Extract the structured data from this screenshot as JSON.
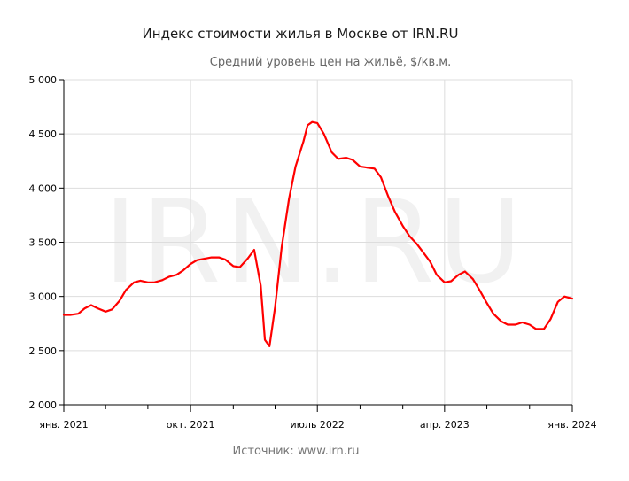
{
  "chart_data": {
    "type": "line",
    "title": "Индекс стоимости жилья в Москве от IRN.RU",
    "subtitle": "Средний уровень цен на жильё, $/кв.м.",
    "source": "Источник: www.irn.ru",
    "watermark": "IRN.RU",
    "ylim": [
      2000,
      5000
    ],
    "y_ticks": [
      {
        "value": 2000,
        "label": "2 000"
      },
      {
        "value": 2500,
        "label": "2 500"
      },
      {
        "value": 3000,
        "label": "3 000"
      },
      {
        "value": 3500,
        "label": "3 500"
      },
      {
        "value": 4000,
        "label": "4 000"
      },
      {
        "value": 4500,
        "label": "4 500"
      },
      {
        "value": 5000,
        "label": "5 000"
      }
    ],
    "xlim": [
      "2021-01",
      "2024-01"
    ],
    "x_ticks": [
      {
        "value": "2021-01",
        "label": "янв. 2021"
      },
      {
        "value": "2021-10",
        "label": "окт. 2021"
      },
      {
        "value": "2022-07",
        "label": "июль 2022"
      },
      {
        "value": "2023-04",
        "label": "апр. 2023"
      },
      {
        "value": "2024-01",
        "label": "янв. 2024"
      }
    ],
    "minor_x_ticks": [
      "2021-04",
      "2021-07",
      "2022-01",
      "2022-04",
      "2022-10",
      "2023-01",
      "2023-07",
      "2023-10"
    ],
    "grid": true,
    "line_color": "#ff0000",
    "series": [
      {
        "x": [
          "2021-01-01",
          "2021-01-15",
          "2021-02-01",
          "2021-02-15",
          "2021-03-01",
          "2021-03-15",
          "2021-04-01",
          "2021-04-15",
          "2021-05-01",
          "2021-05-15",
          "2021-06-01",
          "2021-06-15",
          "2021-07-01",
          "2021-07-15",
          "2021-08-01",
          "2021-08-15",
          "2021-09-01",
          "2021-09-15",
          "2021-10-01",
          "2021-10-15",
          "2021-11-01",
          "2021-11-15",
          "2021-12-01",
          "2021-12-15",
          "2022-01-01",
          "2022-01-15",
          "2022-02-01",
          "2022-02-15",
          "2022-03-01",
          "2022-03-10",
          "2022-03-20",
          "2022-04-01",
          "2022-04-15",
          "2022-05-01",
          "2022-05-15",
          "2022-06-01",
          "2022-06-10",
          "2022-06-20",
          "2022-07-01",
          "2022-07-15",
          "2022-08-01",
          "2022-08-15",
          "2022-09-01",
          "2022-09-15",
          "2022-10-01",
          "2022-10-15",
          "2022-11-01",
          "2022-11-15",
          "2022-12-01",
          "2022-12-15",
          "2023-01-01",
          "2023-01-15",
          "2023-02-01",
          "2023-02-15",
          "2023-03-01",
          "2023-03-15",
          "2023-04-01",
          "2023-04-15",
          "2023-05-01",
          "2023-05-15",
          "2023-06-01",
          "2023-06-15",
          "2023-07-01",
          "2023-07-15",
          "2023-08-01",
          "2023-08-15",
          "2023-09-01",
          "2023-09-15",
          "2023-10-01",
          "2023-10-15",
          "2023-11-01",
          "2023-11-15",
          "2023-12-01",
          "2023-12-15",
          "2024-01-01"
        ],
        "values": [
          2830,
          2830,
          2840,
          2890,
          2920,
          2890,
          2860,
          2880,
          2960,
          3060,
          3130,
          3145,
          3130,
          3130,
          3150,
          3180,
          3200,
          3240,
          3300,
          3335,
          3350,
          3360,
          3360,
          3340,
          3280,
          3270,
          3350,
          3430,
          3100,
          2600,
          2540,
          2900,
          3450,
          3900,
          4200,
          4430,
          4580,
          4610,
          4600,
          4500,
          4330,
          4270,
          4280,
          4260,
          4200,
          4190,
          4180,
          4100,
          3920,
          3780,
          3650,
          3560,
          3480,
          3400,
          3320,
          3200,
          3130,
          3140,
          3200,
          3230,
          3160,
          3060,
          2940,
          2840,
          2770,
          2740,
          2740,
          2760,
          2740,
          2700,
          2700,
          2790,
          2950,
          3000,
          2980
        ]
      }
    ]
  }
}
